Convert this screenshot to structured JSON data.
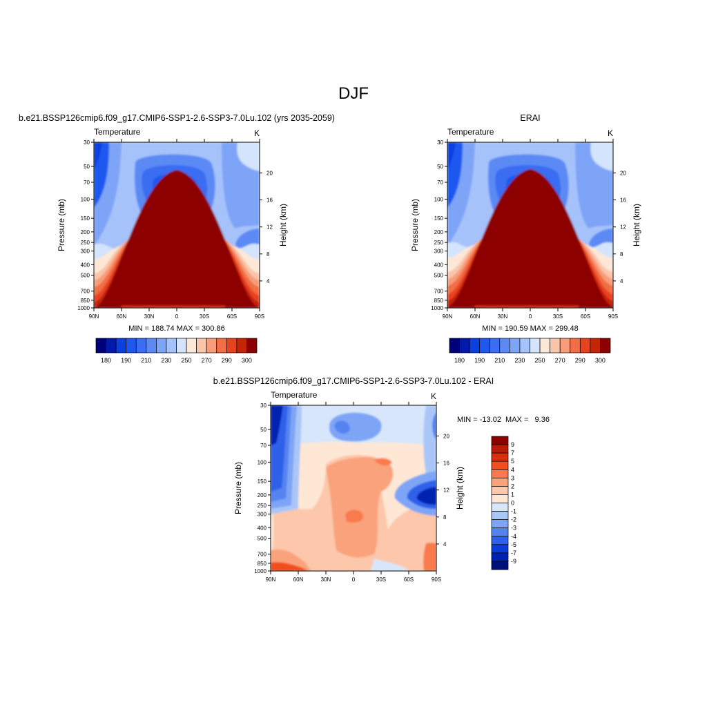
{
  "title": "DJF",
  "chart_data": [
    {
      "type": "heatmap",
      "panel_title": "b.e21.BSSP126cmip6.f09_g17.CMIP6-SSP1-2.6-SSP3-7.0Lu.102 (yrs 2035-2059)",
      "variable": "Temperature",
      "units": "K",
      "xlabel": "",
      "ylabel": "Pressure (mb)",
      "y2label": "Height (km)",
      "x_ticks": [
        "90N",
        "60N",
        "30N",
        "0",
        "30S",
        "60S",
        "90S"
      ],
      "y_ticks": [
        30,
        50,
        70,
        100,
        150,
        200,
        250,
        300,
        400,
        500,
        700,
        850,
        1000
      ],
      "y2_ticks": [
        4,
        8,
        12,
        16,
        20
      ],
      "y_scale": "log",
      "stats": "MIN = 188.74  MAX = 300.86",
      "colorbar": {
        "orientation": "horizontal",
        "levels": [
          180,
          185,
          190,
          195,
          200,
          210,
          220,
          230,
          240,
          250,
          260,
          270,
          280,
          290,
          295,
          300
        ],
        "labels": [
          "180",
          "190",
          "210",
          "230",
          "250",
          "270",
          "290",
          "300"
        ]
      }
    },
    {
      "type": "heatmap",
      "panel_title": "ERAI",
      "variable": "Temperature",
      "units": "K",
      "xlabel": "",
      "ylabel": "Pressure (mb)",
      "y2label": "Height (km)",
      "x_ticks": [
        "90N",
        "60N",
        "30N",
        "0",
        "30S",
        "60S",
        "90S"
      ],
      "y_ticks": [
        30,
        50,
        70,
        100,
        150,
        200,
        250,
        300,
        400,
        500,
        700,
        850,
        1000
      ],
      "y2_ticks": [
        4,
        8,
        12,
        16,
        20
      ],
      "y_scale": "log",
      "stats": "MIN = 190.59  MAX = 299.48",
      "colorbar": {
        "orientation": "horizontal",
        "levels": [
          180,
          185,
          190,
          195,
          200,
          210,
          220,
          230,
          240,
          250,
          260,
          270,
          280,
          290,
          295,
          300
        ],
        "labels": [
          "180",
          "190",
          "210",
          "230",
          "250",
          "270",
          "290",
          "300"
        ]
      }
    },
    {
      "type": "heatmap",
      "panel_title": "b.e21.BSSP126cmip6.f09_g17.CMIP6-SSP1-2.6-SSP3-7.0Lu.102 - ERAI",
      "variable": "Temperature",
      "units": "K",
      "xlabel": "",
      "ylabel": "Pressure (mb)",
      "y2label": "Height (km)",
      "x_ticks": [
        "90N",
        "60N",
        "30N",
        "0",
        "30S",
        "60S",
        "90S"
      ],
      "y_ticks": [
        30,
        50,
        70,
        100,
        150,
        200,
        250,
        300,
        400,
        500,
        700,
        850,
        1000
      ],
      "y2_ticks": [
        4,
        8,
        12,
        16,
        20
      ],
      "y_scale": "log",
      "stats": "MIN = -13.02  MAX =   9.36",
      "colorbar": {
        "orientation": "vertical",
        "levels": [
          -9,
          -7,
          -5,
          -4,
          -3,
          -2,
          -1,
          0,
          1,
          2,
          3,
          4,
          5,
          7,
          9
        ],
        "labels": [
          "9",
          "7",
          "5",
          "4",
          "3",
          "2",
          "1",
          "0",
          "-1",
          "-2",
          "-3",
          "-4",
          "-5",
          "-7",
          "-9"
        ]
      }
    }
  ],
  "palettes": {
    "temperature": [
      "#00007a",
      "#001aab",
      "#0a3fe0",
      "#1f58f0",
      "#3a6df2",
      "#5b8af5",
      "#7ea4f7",
      "#a6c2fa",
      "#d3e4fc",
      "#fde8d8",
      "#fac5aa",
      "#f79d7a",
      "#f26e45",
      "#e84220",
      "#c42408",
      "#8c0000"
    ],
    "difference": [
      "#8c0000",
      "#b81c08",
      "#d8300c",
      "#f04e1e",
      "#f87a4e",
      "#faa27c",
      "#fcc7aa",
      "#fee7d5",
      "#d7e6fb",
      "#aac6f8",
      "#7ea5f5",
      "#5583f0",
      "#2e60ea",
      "#0c3dd8",
      "#0021b0",
      "#00107a"
    ]
  }
}
